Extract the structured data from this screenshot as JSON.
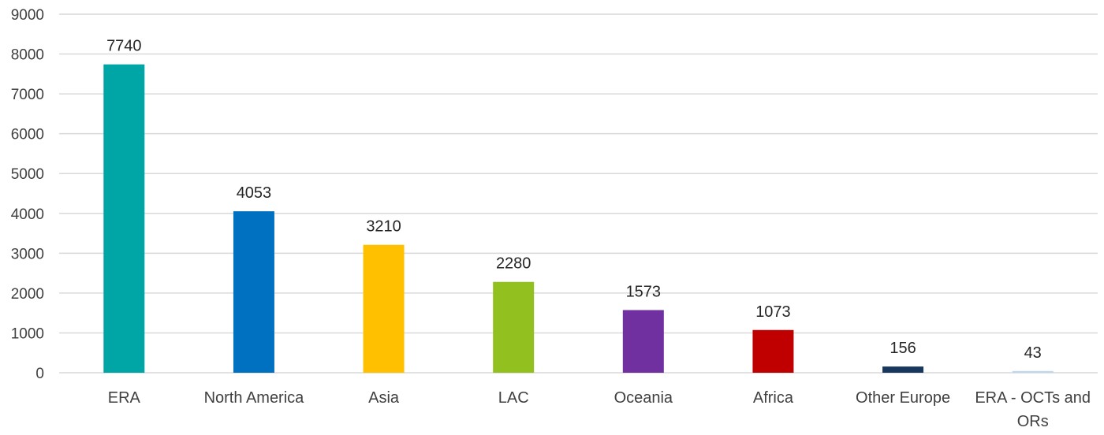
{
  "chart_data": {
    "type": "bar",
    "categories": [
      "ERA",
      "North America",
      "Asia",
      "LAC",
      "Oceania",
      "Africa",
      "Other Europe",
      "ERA - OCTs and ORs"
    ],
    "values": [
      7740,
      4053,
      3210,
      2280,
      1573,
      1073,
      156,
      43
    ],
    "data_labels": [
      "7740",
      "4053",
      "3210",
      "2280",
      "1573",
      "1073",
      "156",
      "43"
    ],
    "colors": [
      "#00A5A5",
      "#0070C0",
      "#FFC000",
      "#92C01E",
      "#7030A0",
      "#C00000",
      "#17375E",
      "#BDD7EE"
    ],
    "yticks": [
      "0",
      "1000",
      "2000",
      "3000",
      "4000",
      "5000",
      "6000",
      "7000",
      "8000",
      "9000"
    ],
    "ylim": [
      0,
      9000
    ],
    "grid": true,
    "legend": "none",
    "title": "",
    "xlabel": "",
    "ylabel": ""
  }
}
